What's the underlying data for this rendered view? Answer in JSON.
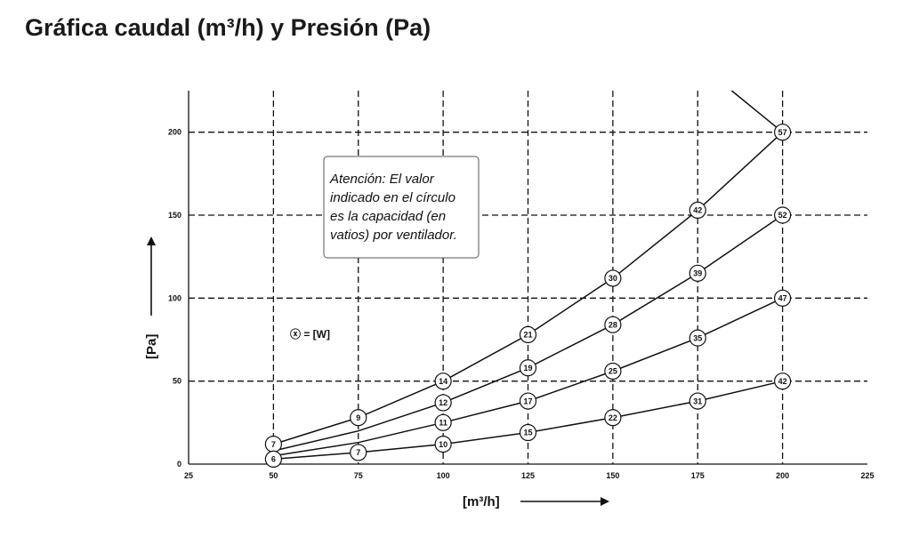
{
  "title": "Gráfica caudal (m³/h) y Presión (Pa)",
  "chart_data": {
    "type": "line",
    "title": "",
    "xlabel": "[m³/h]",
    "ylabel": "[Pa]",
    "xlim": [
      25,
      225
    ],
    "ylim": [
      0,
      225
    ],
    "x_ticks": [
      "25",
      "50",
      "75",
      "100",
      "125",
      "150",
      "175",
      "200",
      "225"
    ],
    "y_ticks": [
      "0",
      "50",
      "100",
      "150",
      "200"
    ],
    "grid": true,
    "legend_key": "ⓧ = [W]",
    "annotation": [
      "Atención: El valor",
      "indicado en el círculo",
      "es la capacidad (en",
      "vatios) por ventilador."
    ],
    "series": [
      {
        "x": [
          50,
          75,
          100,
          125,
          150,
          175,
          200
        ],
        "y": [
          12,
          28,
          50,
          78,
          112,
          153,
          200
        ],
        "watts": [
          "7",
          "9",
          "14",
          "21",
          "30",
          "42",
          "57"
        ]
      },
      {
        "x": [
          50,
          75,
          100,
          125,
          150,
          175,
          200
        ],
        "y": [
          8,
          20,
          37,
          58,
          84,
          115,
          150
        ],
        "watts": [
          "",
          "",
          "12",
          "19",
          "28",
          "39",
          "52"
        ]
      },
      {
        "x": [
          50,
          75,
          100,
          125,
          150,
          175,
          200
        ],
        "y": [
          5,
          13,
          25,
          38,
          56,
          76,
          100
        ],
        "watts": [
          "",
          "",
          "11",
          "17",
          "25",
          "35",
          "47"
        ]
      },
      {
        "x": [
          50,
          75,
          100,
          125,
          150,
          175,
          200
        ],
        "y": [
          3,
          7,
          12,
          19,
          28,
          38,
          50
        ],
        "watts": [
          "6",
          "7",
          "10",
          "15",
          "22",
          "31",
          "42"
        ]
      },
      {
        "x": [
          185,
          200
        ],
        "y": [
          225,
          200
        ],
        "watts": []
      }
    ]
  }
}
